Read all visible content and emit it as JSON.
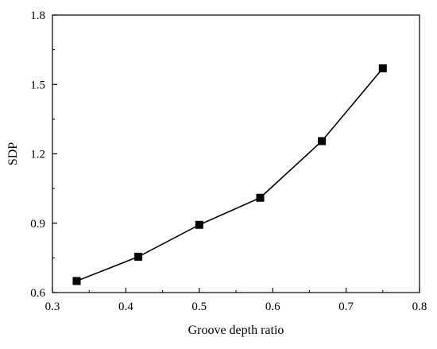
{
  "chart_data": {
    "type": "line",
    "title": "",
    "xlabel": "Groove depth ratio",
    "ylabel": "SDP",
    "xlim": [
      0.3,
      0.8
    ],
    "ylim": [
      0.6,
      1.8
    ],
    "x_ticks": [
      0.3,
      0.4,
      0.5,
      0.6,
      0.7,
      0.8
    ],
    "x_tick_labels": [
      "0.3",
      "0.4",
      "0.5",
      "0.6",
      "0.7",
      "0.8"
    ],
    "y_ticks": [
      0.6,
      0.9,
      1.2,
      1.5,
      1.8
    ],
    "y_tick_labels": [
      "0.6",
      "0.9",
      "1.2",
      "1.5",
      "1.8"
    ],
    "grid": false,
    "legend": "none",
    "series": [
      {
        "marker": "square",
        "color": "#000000",
        "x": [
          0.333,
          0.417,
          0.5,
          0.583,
          0.667,
          0.75
        ],
        "y": [
          0.65,
          0.755,
          0.893,
          1.01,
          1.255,
          1.57
        ]
      }
    ]
  }
}
